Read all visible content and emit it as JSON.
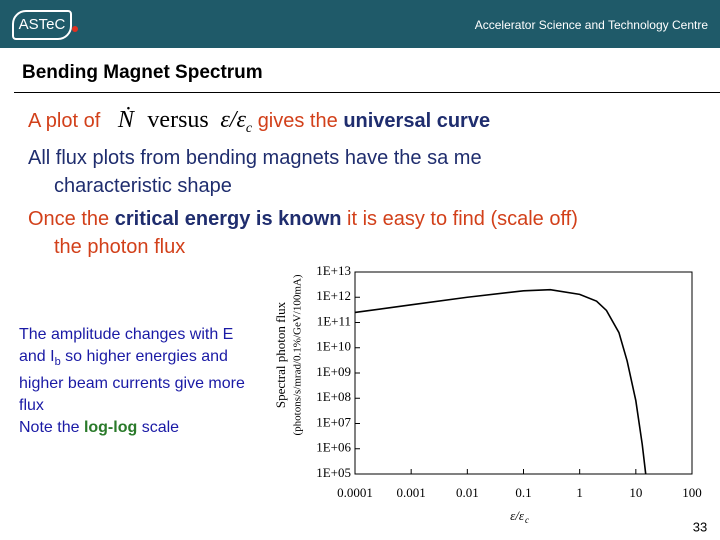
{
  "header": {
    "logo": "ASTeC",
    "organisation": "Accelerator Science and Technology Centre"
  },
  "title": "Bending Magnet Spectrum",
  "bullets": [
    {
      "prefix": "A plot of",
      "formula": {
        "symbol": "Ṅ",
        "word": "versus",
        "ratio": "ε/ε",
        "ratio_sub": "c"
      },
      "middle": "gives the",
      "bold": "universal curve"
    },
    {
      "lines": [
        "All flux plots from bending magnets have the sa me",
        "characteristic shape"
      ]
    },
    {
      "prefix": "Once the",
      "bold": "critical energy is known",
      "suffix": "it is easy to find (scale off)",
      "line2": "the photon flux"
    }
  ],
  "note": {
    "text1": "The amplitude changes with E and I",
    "sub": "b",
    "text2": "so higher energies and higher beam currents give more flux",
    "prefix": "Note the",
    "bold": "log-log",
    "suffix": "scale"
  },
  "page_number": "33",
  "chart_data": {
    "type": "line",
    "xlabel": {
      "main": "ε/ε",
      "sub": "c"
    },
    "ylabel": [
      "Spectral photon flux",
      "(photons/s/mrad/0.1%/GeV/100mA)"
    ],
    "x": [
      0.0001,
      0.001,
      0.01,
      0.1,
      0.3,
      1,
      2,
      3,
      5,
      7,
      10,
      13,
      15
    ],
    "values": [
      250000000000,
      500000000000,
      1000000000000,
      1800000000000,
      2000000000000,
      1300000000000,
      700000000000,
      300000000000,
      40000000000,
      3000000000,
      80000000,
      1500000,
      100000
    ],
    "color": "#000000",
    "xscale": "log",
    "yscale": "log",
    "xlim": [
      0.0001,
      100
    ],
    "ylim": [
      100000,
      10000000000000
    ],
    "xticks": [
      0.0001,
      0.001,
      0.01,
      0.1,
      1,
      10,
      100
    ],
    "yticks": [
      {
        "value": 100000,
        "label": "1E+05"
      },
      {
        "value": 1000000,
        "label": "1E+06"
      },
      {
        "value": 10000000,
        "label": "1E+07"
      },
      {
        "value": 100000000,
        "label": "1E+08"
      },
      {
        "value": 1000000000,
        "label": "1E+09"
      },
      {
        "value": 10000000000,
        "label": "1E+10"
      },
      {
        "value": 100000000000,
        "label": "1E+11"
      },
      {
        "value": 1000000000000,
        "label": "1E+12"
      },
      {
        "value": 10000000000000,
        "label": "1E+13"
      }
    ],
    "grid": false
  }
}
